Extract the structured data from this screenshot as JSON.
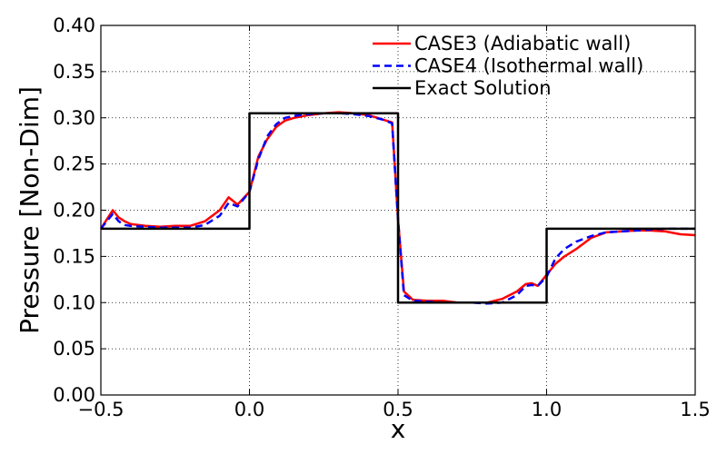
{
  "chart_data": {
    "type": "line",
    "title": "",
    "xlabel": "x",
    "ylabel": "Pressure [Non-Dim]",
    "xlim": [
      -0.5,
      1.5
    ],
    "ylim": [
      0.0,
      0.4
    ],
    "xticks": [
      -0.5,
      0.0,
      0.5,
      1.0,
      1.5
    ],
    "xtick_labels": [
      "−0.5",
      "0.0",
      "0.5",
      "1.0",
      "1.5"
    ],
    "yticks": [
      0.0,
      0.05,
      0.1,
      0.15,
      0.2,
      0.25,
      0.3,
      0.35,
      0.4
    ],
    "ytick_labels": [
      "0.00",
      "0.05",
      "0.10",
      "0.15",
      "0.20",
      "0.25",
      "0.30",
      "0.35",
      "0.40"
    ],
    "grid": true,
    "legend_position": "top-right",
    "series": [
      {
        "name": "CASE3 (Adiabatic wall)",
        "color": "#ff0000",
        "style": "solid",
        "x": [
          -0.5,
          -0.48,
          -0.46,
          -0.44,
          -0.42,
          -0.4,
          -0.35,
          -0.3,
          -0.25,
          -0.2,
          -0.15,
          -0.1,
          -0.07,
          -0.04,
          0.0,
          0.03,
          0.06,
          0.09,
          0.12,
          0.15,
          0.2,
          0.25,
          0.3,
          0.35,
          0.4,
          0.45,
          0.48,
          0.5,
          0.52,
          0.55,
          0.6,
          0.65,
          0.7,
          0.75,
          0.8,
          0.85,
          0.9,
          0.93,
          0.95,
          0.97,
          1.0,
          1.03,
          1.06,
          1.1,
          1.15,
          1.2,
          1.25,
          1.3,
          1.35,
          1.4,
          1.45,
          1.5
        ],
        "y": [
          0.18,
          0.19,
          0.2,
          0.192,
          0.188,
          0.185,
          0.183,
          0.182,
          0.183,
          0.183,
          0.188,
          0.2,
          0.214,
          0.206,
          0.22,
          0.258,
          0.277,
          0.29,
          0.297,
          0.3,
          0.303,
          0.305,
          0.306,
          0.305,
          0.303,
          0.298,
          0.295,
          0.19,
          0.112,
          0.103,
          0.102,
          0.102,
          0.1,
          0.1,
          0.1,
          0.104,
          0.112,
          0.12,
          0.121,
          0.118,
          0.13,
          0.142,
          0.15,
          0.158,
          0.17,
          0.176,
          0.177,
          0.178,
          0.178,
          0.177,
          0.174,
          0.173
        ]
      },
      {
        "name": "CASE4 (Isothermal wall)",
        "color": "#0000ff",
        "style": "dashed",
        "x": [
          -0.5,
          -0.48,
          -0.46,
          -0.44,
          -0.42,
          -0.4,
          -0.35,
          -0.3,
          -0.25,
          -0.2,
          -0.15,
          -0.1,
          -0.07,
          -0.04,
          0.0,
          0.03,
          0.06,
          0.09,
          0.12,
          0.15,
          0.2,
          0.25,
          0.3,
          0.35,
          0.4,
          0.45,
          0.48,
          0.5,
          0.52,
          0.55,
          0.6,
          0.65,
          0.7,
          0.75,
          0.8,
          0.85,
          0.9,
          0.93,
          0.95,
          0.97,
          1.0,
          1.03,
          1.06,
          1.1,
          1.15,
          1.2,
          1.25,
          1.3,
          1.35,
          1.4,
          1.45,
          1.5
        ],
        "y": [
          0.18,
          0.188,
          0.196,
          0.188,
          0.184,
          0.183,
          0.182,
          0.181,
          0.181,
          0.181,
          0.184,
          0.194,
          0.208,
          0.204,
          0.22,
          0.255,
          0.28,
          0.293,
          0.3,
          0.302,
          0.304,
          0.305,
          0.305,
          0.304,
          0.302,
          0.298,
          0.294,
          0.19,
          0.108,
          0.102,
          0.101,
          0.1,
          0.1,
          0.1,
          0.099,
          0.1,
          0.108,
          0.118,
          0.119,
          0.118,
          0.128,
          0.148,
          0.158,
          0.166,
          0.172,
          0.176,
          0.177,
          0.178,
          0.179,
          0.18,
          0.18,
          0.18
        ]
      },
      {
        "name": "Exact Solution",
        "color": "#000000",
        "style": "solid",
        "x": [
          -0.5,
          0.0,
          0.0,
          0.5,
          0.5,
          1.0,
          1.0,
          1.5
        ],
        "y": [
          0.18,
          0.18,
          0.305,
          0.305,
          0.1,
          0.1,
          0.18,
          0.18
        ]
      }
    ]
  }
}
